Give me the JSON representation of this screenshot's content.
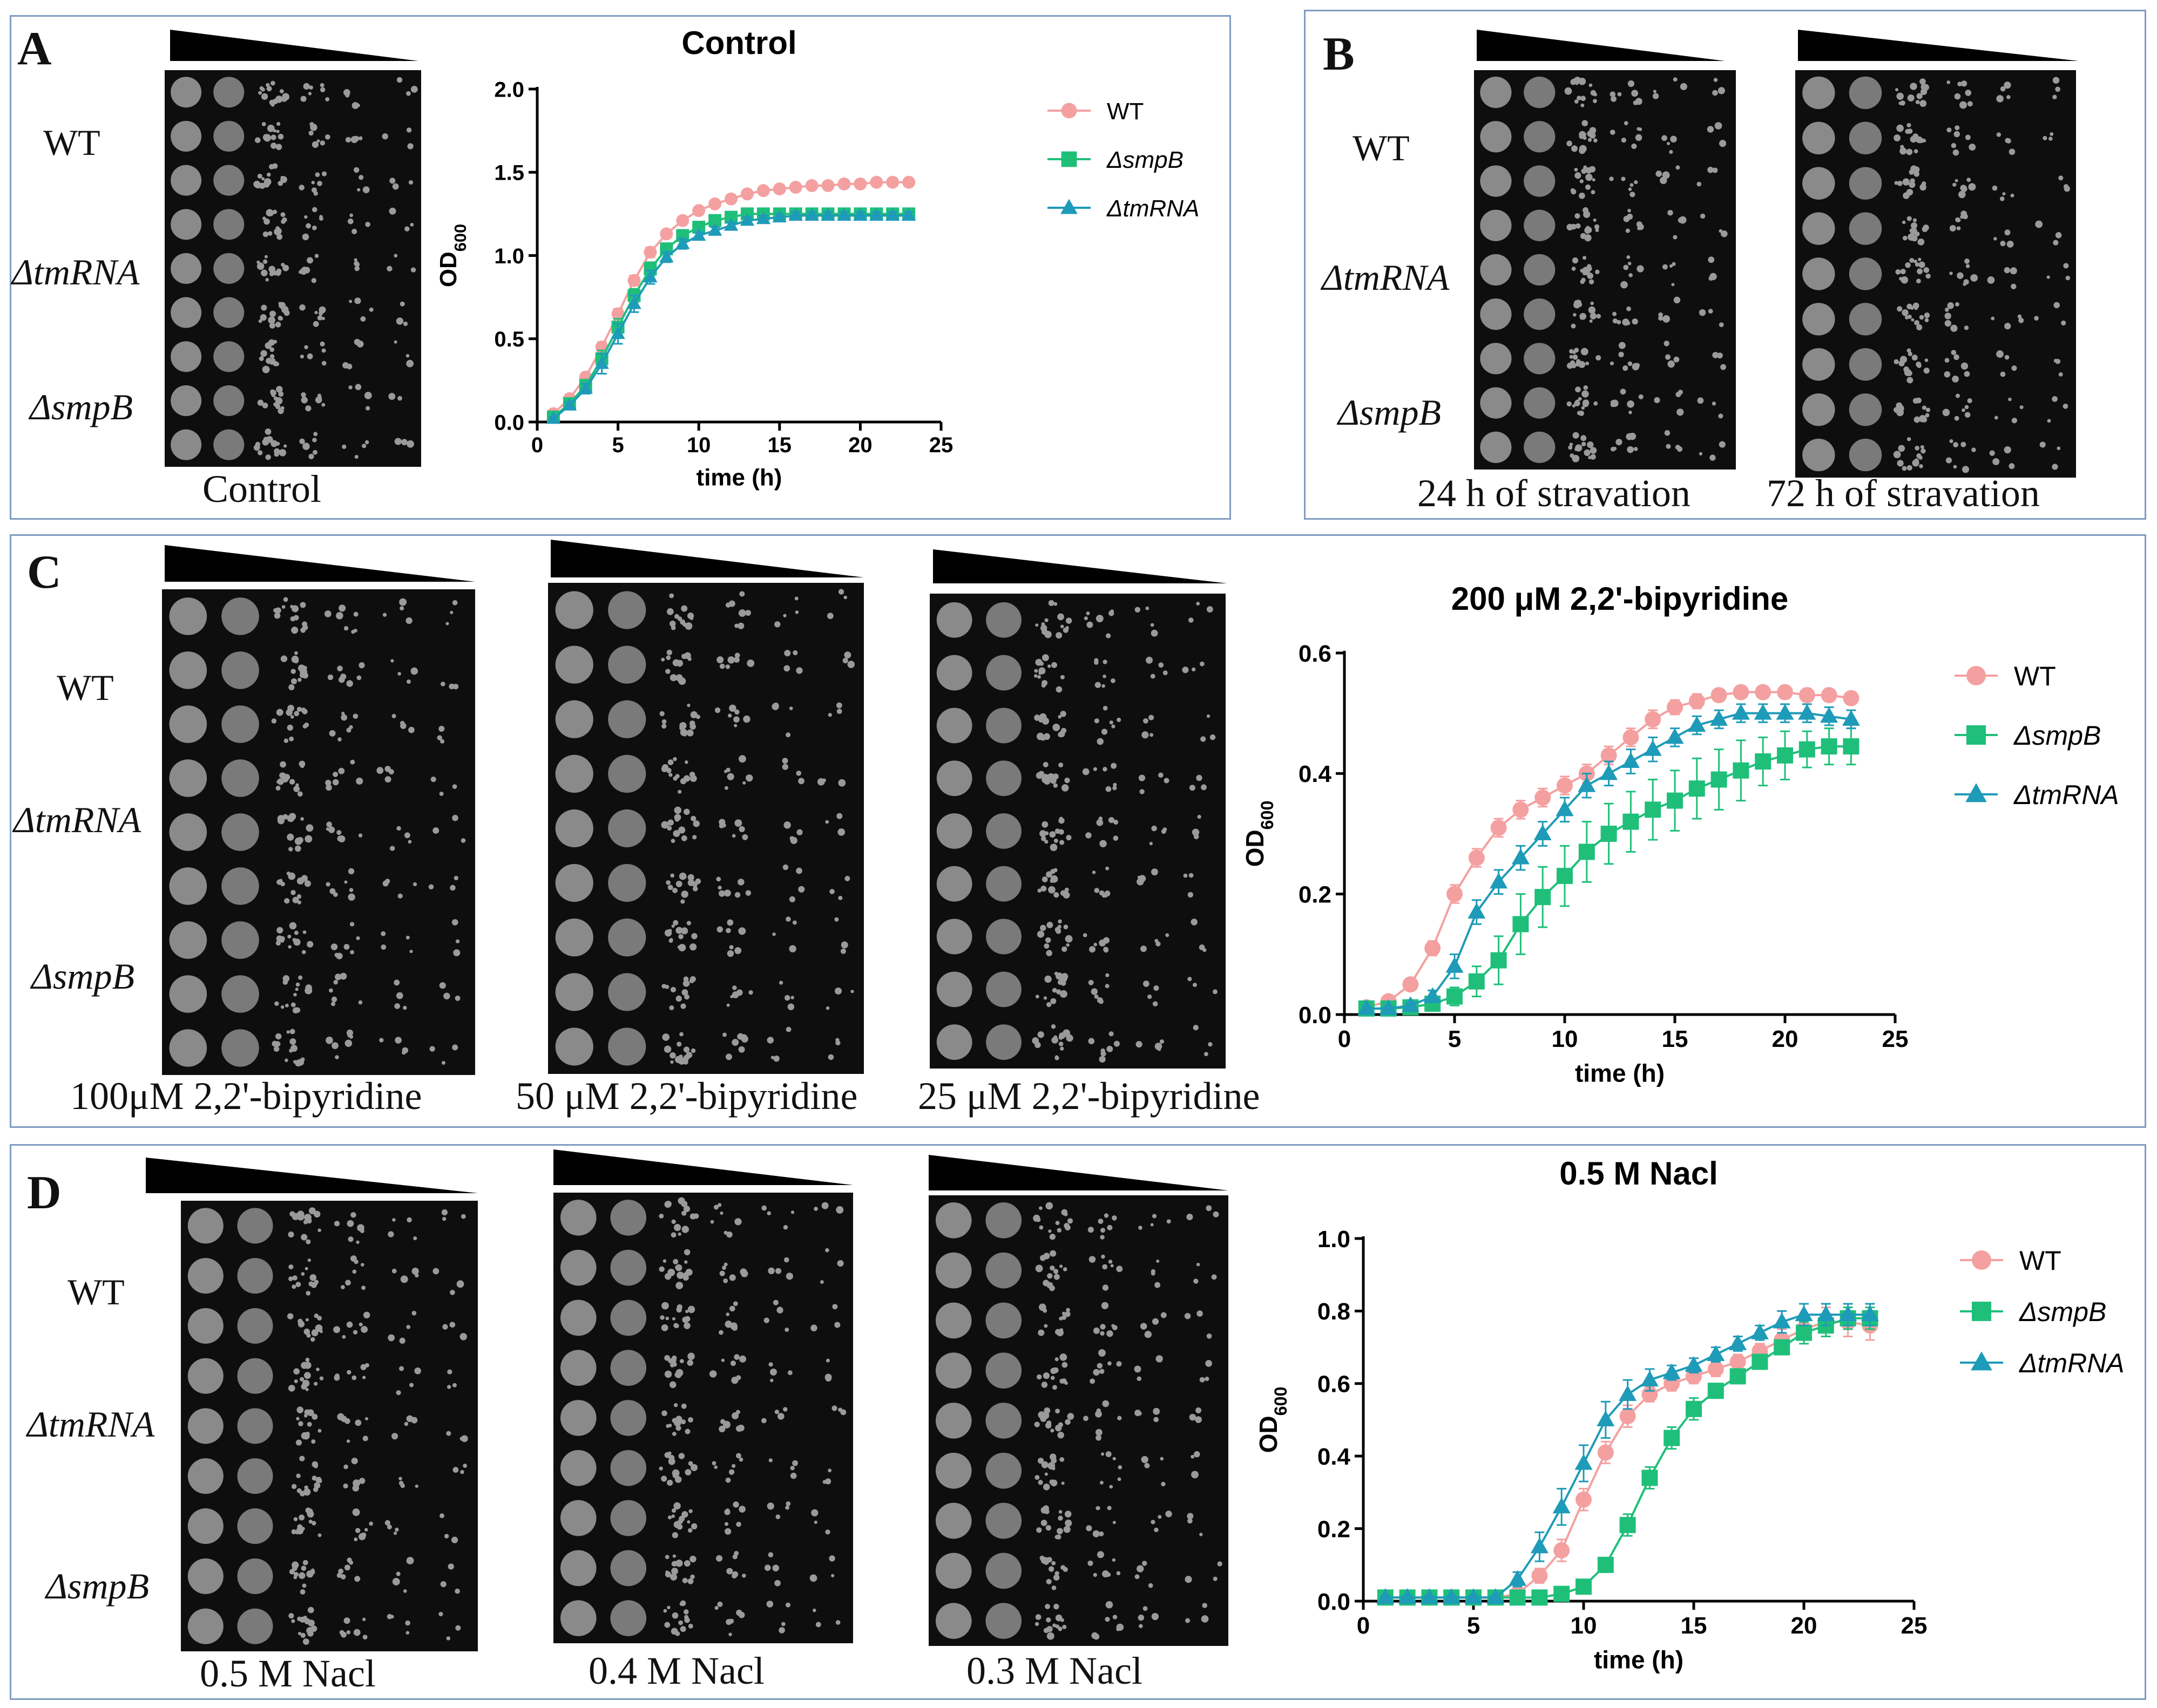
{
  "panels": {
    "A": {
      "letter": "A",
      "strains": [
        "WT",
        "ΔtmRNA",
        "ΔsmpB"
      ],
      "plate_labels": [
        "Control"
      ]
    },
    "B": {
      "letter": "B",
      "strains": [
        "WT",
        "ΔtmRNA",
        "ΔsmpB"
      ],
      "plate_labels": [
        "24 h of stravation",
        "72 h of stravation"
      ]
    },
    "C": {
      "letter": "C",
      "strains": [
        "WT",
        "ΔtmRNA",
        "ΔsmpB"
      ],
      "plate_labels": [
        "100μM 2,2'-bipyridine",
        "50 μM 2,2'-bipyridine",
        "25 μM 2,2'-bipyridine"
      ]
    },
    "D": {
      "letter": "D",
      "strains": [
        "WT",
        "ΔtmRNA",
        "ΔsmpB"
      ],
      "plate_labels": [
        "0.5 M Nacl",
        "0.4 M Nacl",
        "0.3 M Nacl"
      ]
    }
  },
  "colors": {
    "WT": "#f4a0a0",
    "smpB": "#1fbf7a",
    "tmRNA": "#1e9bb8",
    "frame": "#7f9cc0"
  },
  "chart_data": [
    {
      "id": "A",
      "type": "line",
      "title": "Control",
      "xlabel": "time (h)",
      "ylabel": "OD600",
      "xlim": [
        0,
        25
      ],
      "ylim": [
        0,
        2.0
      ],
      "xticks": [
        "0",
        "5",
        "10",
        "15",
        "20",
        "25"
      ],
      "yticks": [
        "0.0",
        "0.5",
        "1.0",
        "1.5",
        "2.0"
      ],
      "legend_position": "top-right",
      "x": [
        1,
        2,
        3,
        4,
        5,
        6,
        7,
        8,
        9,
        10,
        11,
        12,
        13,
        14,
        15,
        16,
        17,
        18,
        19,
        20,
        21,
        22,
        23
      ],
      "series": [
        {
          "name": "WT",
          "key": "WT",
          "marker": "circle",
          "values": [
            0.05,
            0.14,
            0.27,
            0.45,
            0.65,
            0.85,
            1.02,
            1.13,
            1.21,
            1.27,
            1.31,
            1.34,
            1.37,
            1.39,
            1.4,
            1.41,
            1.42,
            1.42,
            1.43,
            1.43,
            1.44,
            1.44,
            1.44
          ],
          "errors": [
            0.01,
            0.02,
            0.02,
            0.03,
            0.03,
            0.03,
            0.03,
            0.02,
            0.02,
            0.02,
            0.02,
            0.02,
            0.02,
            0.02,
            0.02,
            0.02,
            0.02,
            0.02,
            0.02,
            0.02,
            0.02,
            0.02,
            0.02
          ]
        },
        {
          "name": "ΔsmpB",
          "key": "smpB",
          "marker": "square",
          "values": [
            0.03,
            0.11,
            0.22,
            0.38,
            0.57,
            0.76,
            0.92,
            1.04,
            1.12,
            1.17,
            1.21,
            1.23,
            1.25,
            1.25,
            1.25,
            1.25,
            1.25,
            1.25,
            1.25,
            1.25,
            1.25,
            1.25,
            1.25
          ],
          "errors": [
            0.01,
            0.02,
            0.03,
            0.05,
            0.05,
            0.04,
            0.04,
            0.03,
            0.03,
            0.02,
            0.02,
            0.02,
            0.02,
            0.02,
            0.02,
            0.02,
            0.02,
            0.02,
            0.02,
            0.02,
            0.02,
            0.02,
            0.02
          ]
        },
        {
          "name": "ΔtmRNA",
          "key": "tmRNA",
          "marker": "triangle",
          "values": [
            0.02,
            0.1,
            0.2,
            0.35,
            0.53,
            0.71,
            0.87,
            0.99,
            1.07,
            1.12,
            1.15,
            1.18,
            1.21,
            1.22,
            1.23,
            1.24,
            1.24,
            1.24,
            1.24,
            1.24,
            1.24,
            1.24,
            1.24
          ],
          "errors": [
            0.01,
            0.02,
            0.03,
            0.06,
            0.06,
            0.05,
            0.04,
            0.03,
            0.03,
            0.02,
            0.02,
            0.02,
            0.02,
            0.02,
            0.02,
            0.02,
            0.02,
            0.02,
            0.02,
            0.02,
            0.02,
            0.02,
            0.02
          ]
        }
      ]
    },
    {
      "id": "C",
      "type": "line",
      "title": "200 μM 2,2'-bipyridine",
      "xlabel": "time (h)",
      "ylabel": "OD600",
      "xlim": [
        0,
        25
      ],
      "ylim": [
        0,
        0.6
      ],
      "xticks": [
        "0",
        "5",
        "10",
        "15",
        "20",
        "25"
      ],
      "yticks": [
        "0.0",
        "0.2",
        "0.4",
        "0.6"
      ],
      "legend_position": "top-right",
      "x": [
        1,
        2,
        3,
        4,
        5,
        6,
        7,
        8,
        9,
        10,
        11,
        12,
        13,
        14,
        15,
        16,
        17,
        18,
        19,
        20,
        21,
        22,
        23
      ],
      "series": [
        {
          "name": "WT",
          "key": "WT",
          "marker": "circle",
          "values": [
            0.012,
            0.022,
            0.05,
            0.11,
            0.2,
            0.26,
            0.31,
            0.34,
            0.36,
            0.38,
            0.4,
            0.43,
            0.46,
            0.49,
            0.51,
            0.52,
            0.53,
            0.535,
            0.535,
            0.535,
            0.53,
            0.53,
            0.525
          ],
          "errors": [
            0.003,
            0.005,
            0.008,
            0.012,
            0.015,
            0.015,
            0.015,
            0.015,
            0.015,
            0.015,
            0.015,
            0.015,
            0.015,
            0.015,
            0.012,
            0.012,
            0.01,
            0.01,
            0.01,
            0.01,
            0.01,
            0.01,
            0.01
          ]
        },
        {
          "name": "ΔsmpB",
          "key": "smpB",
          "marker": "square",
          "values": [
            0.01,
            0.01,
            0.012,
            0.018,
            0.03,
            0.055,
            0.09,
            0.15,
            0.195,
            0.23,
            0.27,
            0.3,
            0.32,
            0.34,
            0.355,
            0.375,
            0.39,
            0.405,
            0.42,
            0.43,
            0.44,
            0.445,
            0.445
          ],
          "errors": [
            0.003,
            0.003,
            0.004,
            0.008,
            0.015,
            0.025,
            0.04,
            0.05,
            0.05,
            0.05,
            0.05,
            0.05,
            0.05,
            0.05,
            0.05,
            0.05,
            0.05,
            0.05,
            0.04,
            0.04,
            0.03,
            0.03,
            0.03
          ]
        },
        {
          "name": "ΔtmRNA",
          "key": "tmRNA",
          "marker": "triangle",
          "values": [
            0.01,
            0.01,
            0.015,
            0.03,
            0.08,
            0.17,
            0.22,
            0.26,
            0.3,
            0.34,
            0.38,
            0.4,
            0.42,
            0.44,
            0.46,
            0.48,
            0.49,
            0.5,
            0.5,
            0.5,
            0.5,
            0.495,
            0.49
          ],
          "errors": [
            0.003,
            0.003,
            0.005,
            0.01,
            0.02,
            0.02,
            0.02,
            0.02,
            0.02,
            0.02,
            0.02,
            0.02,
            0.02,
            0.02,
            0.015,
            0.015,
            0.015,
            0.015,
            0.015,
            0.015,
            0.015,
            0.015,
            0.015
          ]
        }
      ]
    },
    {
      "id": "D",
      "type": "line",
      "title": "0.5 M Nacl",
      "xlabel": "time (h)",
      "ylabel": "OD600",
      "xlim": [
        0,
        25
      ],
      "ylim": [
        0,
        1.0
      ],
      "xticks": [
        "0",
        "5",
        "10",
        "15",
        "20",
        "25"
      ],
      "yticks": [
        "0.0",
        "0.2",
        "0.4",
        "0.6",
        "0.8",
        "1.0"
      ],
      "legend_position": "top-right",
      "x": [
        1,
        2,
        3,
        4,
        5,
        6,
        7,
        8,
        9,
        10,
        11,
        12,
        13,
        14,
        15,
        16,
        17,
        18,
        19,
        20,
        21,
        22,
        23
      ],
      "series": [
        {
          "name": "WT",
          "key": "WT",
          "marker": "circle",
          "values": [
            0.01,
            0.01,
            0.01,
            0.01,
            0.01,
            0.01,
            0.02,
            0.07,
            0.14,
            0.28,
            0.41,
            0.51,
            0.57,
            0.6,
            0.62,
            0.64,
            0.66,
            0.69,
            0.72,
            0.75,
            0.77,
            0.77,
            0.76
          ],
          "errors": [
            0.005,
            0.005,
            0.005,
            0.005,
            0.005,
            0.005,
            0.01,
            0.02,
            0.03,
            0.03,
            0.03,
            0.03,
            0.02,
            0.02,
            0.02,
            0.02,
            0.02,
            0.02,
            0.03,
            0.03,
            0.04,
            0.04,
            0.04
          ]
        },
        {
          "name": "ΔsmpB",
          "key": "smpB",
          "marker": "square",
          "values": [
            0.01,
            0.01,
            0.01,
            0.01,
            0.01,
            0.01,
            0.01,
            0.01,
            0.02,
            0.04,
            0.1,
            0.21,
            0.34,
            0.45,
            0.53,
            0.58,
            0.62,
            0.66,
            0.7,
            0.74,
            0.76,
            0.78,
            0.78
          ],
          "errors": [
            0.005,
            0.005,
            0.005,
            0.005,
            0.005,
            0.005,
            0.005,
            0.005,
            0.005,
            0.01,
            0.02,
            0.03,
            0.03,
            0.03,
            0.03,
            0.02,
            0.02,
            0.02,
            0.02,
            0.03,
            0.03,
            0.03,
            0.03
          ]
        },
        {
          "name": "ΔtmRNA",
          "key": "tmRNA",
          "marker": "triangle",
          "values": [
            0.01,
            0.01,
            0.01,
            0.01,
            0.01,
            0.01,
            0.06,
            0.15,
            0.26,
            0.38,
            0.5,
            0.57,
            0.61,
            0.63,
            0.65,
            0.68,
            0.71,
            0.74,
            0.77,
            0.79,
            0.79,
            0.79,
            0.79
          ],
          "errors": [
            0.005,
            0.005,
            0.005,
            0.005,
            0.005,
            0.005,
            0.02,
            0.04,
            0.05,
            0.05,
            0.05,
            0.04,
            0.03,
            0.02,
            0.02,
            0.02,
            0.02,
            0.02,
            0.03,
            0.03,
            0.03,
            0.03,
            0.03
          ]
        }
      ]
    }
  ]
}
